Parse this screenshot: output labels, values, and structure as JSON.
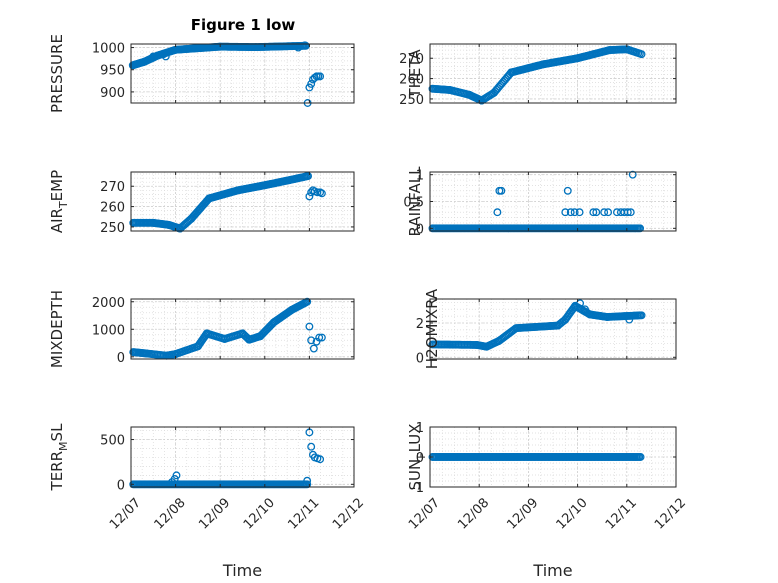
{
  "figure_title": "Figure 1 low",
  "colors": {
    "marker": "#0072BD",
    "axis": "#262626",
    "grid": "#d9d9d9"
  },
  "chart_data": [
    {
      "type": "scatter",
      "title": "Figure 1 low",
      "ylabel": "PRESSURE",
      "ylabel_parts": [
        "PRESSURE"
      ],
      "xlabel": "",
      "xticks": [
        "12/07",
        "12/08",
        "12/09",
        "12/10",
        "12/11",
        "12/12"
      ],
      "xlim": [
        0,
        5
      ],
      "ylim": [
        875,
        1008
      ],
      "yticks": [
        "900",
        "950",
        "1000"
      ],
      "ytick_values": [
        900,
        950,
        1000
      ],
      "segments": [
        {
          "from": [
            0.04,
            960
          ],
          "to": [
            0.3,
            968
          ],
          "n": 14
        },
        {
          "from": [
            0.3,
            968
          ],
          "to": [
            0.6,
            982
          ],
          "n": 14
        },
        {
          "from": [
            0.6,
            982
          ],
          "to": [
            1.0,
            995
          ],
          "n": 18
        },
        {
          "from": [
            1.0,
            995
          ],
          "to": [
            2.0,
            1002
          ],
          "n": 40
        },
        {
          "from": [
            2.0,
            1002
          ],
          "to": [
            2.8,
            1001
          ],
          "n": 32
        },
        {
          "from": [
            2.8,
            1001
          ],
          "to": [
            3.92,
            1004
          ],
          "n": 42
        }
      ],
      "points": [
        [
          0.45,
          975
        ],
        [
          0.5,
          980
        ],
        [
          0.73,
          985
        ],
        [
          0.78,
          980
        ],
        [
          3.75,
          1000
        ],
        [
          3.9,
          1005
        ],
        [
          3.96,
          875
        ],
        [
          4.0,
          910
        ],
        [
          4.04,
          918
        ],
        [
          4.08,
          928
        ],
        [
          4.12,
          932
        ],
        [
          4.16,
          935
        ],
        [
          4.2,
          935
        ],
        [
          4.24,
          935
        ]
      ]
    },
    {
      "type": "scatter",
      "ylabel": "THETA",
      "ylabel_parts": [
        "THETA"
      ],
      "xlabel": "",
      "xticks": [
        "12/07",
        "12/08",
        "12/09",
        "12/10",
        "12/11",
        "12/12"
      ],
      "xlim": [
        0,
        5
      ],
      "ylim": [
        248,
        277
      ],
      "yticks": [
        "250",
        "260",
        "270"
      ],
      "ytick_values": [
        250,
        260,
        270
      ],
      "segments": [
        {
          "from": [
            0.05,
            255
          ],
          "to": [
            0.4,
            254.4
          ],
          "n": 14
        },
        {
          "from": [
            0.4,
            254.4
          ],
          "to": [
            0.8,
            252
          ],
          "n": 14
        },
        {
          "from": [
            0.8,
            252
          ],
          "to": [
            1.05,
            249.2
          ],
          "n": 12
        },
        {
          "from": [
            1.05,
            249.2
          ],
          "to": [
            1.3,
            253
          ],
          "n": 10
        },
        {
          "from": [
            1.3,
            253
          ],
          "to": [
            1.65,
            263
          ],
          "n": 14
        },
        {
          "from": [
            1.65,
            263
          ],
          "to": [
            2.3,
            267
          ],
          "n": 24
        },
        {
          "from": [
            2.3,
            267
          ],
          "to": [
            3.0,
            270
          ],
          "n": 28
        },
        {
          "from": [
            3.0,
            270
          ],
          "to": [
            3.65,
            274
          ],
          "n": 26
        },
        {
          "from": [
            3.65,
            274
          ],
          "to": [
            4.0,
            274.4
          ],
          "n": 14
        },
        {
          "from": [
            4.0,
            274.4
          ],
          "to": [
            4.3,
            272
          ],
          "n": 10
        }
      ],
      "points": []
    },
    {
      "type": "scatter",
      "ylabel": "AIR_TEMP",
      "ylabel_parts": [
        "AIR",
        "T",
        "EMP"
      ],
      "xlabel": "",
      "xticks": [
        "12/07",
        "12/08",
        "12/09",
        "12/10",
        "12/11",
        "12/12"
      ],
      "xlim": [
        0,
        5
      ],
      "ylim": [
        248,
        277
      ],
      "yticks": [
        "250",
        "260",
        "270"
      ],
      "ytick_values": [
        250,
        260,
        270
      ],
      "segments": [
        {
          "from": [
            0.05,
            252
          ],
          "to": [
            0.5,
            252
          ],
          "n": 16
        },
        {
          "from": [
            0.5,
            252
          ],
          "to": [
            0.85,
            251
          ],
          "n": 14
        },
        {
          "from": [
            0.85,
            251
          ],
          "to": [
            1.1,
            249.2
          ],
          "n": 10
        },
        {
          "from": [
            1.1,
            249.2
          ],
          "to": [
            1.35,
            254
          ],
          "n": 10
        },
        {
          "from": [
            1.35,
            254
          ],
          "to": [
            1.75,
            264
          ],
          "n": 16
        },
        {
          "from": [
            1.75,
            264
          ],
          "to": [
            2.4,
            268
          ],
          "n": 26
        },
        {
          "from": [
            2.4,
            268
          ],
          "to": [
            3.0,
            270.5
          ],
          "n": 26
        },
        {
          "from": [
            3.0,
            270.5
          ],
          "to": [
            3.55,
            273
          ],
          "n": 22
        },
        {
          "from": [
            3.55,
            273
          ],
          "to": [
            3.97,
            275
          ],
          "n": 16
        }
      ],
      "points": [
        [
          4.0,
          265
        ],
        [
          4.04,
          267
        ],
        [
          4.08,
          268
        ],
        [
          4.12,
          267.5
        ],
        [
          4.18,
          267
        ],
        [
          4.24,
          267
        ],
        [
          4.28,
          266.5
        ]
      ]
    },
    {
      "type": "scatter",
      "ylabel": "RAINFALL",
      "ylabel_parts": [
        "RAINFALL"
      ],
      "xlabel": "",
      "xticks": [
        "12/07",
        "12/08",
        "12/09",
        "12/10",
        "12/11",
        "12/12"
      ],
      "xlim": [
        0,
        5
      ],
      "ylim": [
        -0.05,
        1.05
      ],
      "yticks": [
        "0",
        "0.5",
        "1"
      ],
      "ytick_values": [
        0,
        0.5,
        1
      ],
      "segments": [
        {
          "from": [
            0.05,
            0
          ],
          "to": [
            4.27,
            0
          ],
          "n": 150
        }
      ],
      "points": [
        [
          1.37,
          0.3
        ],
        [
          1.41,
          0.7
        ],
        [
          1.45,
          0.7
        ],
        [
          2.75,
          0.3
        ],
        [
          2.8,
          0.7
        ],
        [
          2.86,
          0.3
        ],
        [
          2.94,
          0.3
        ],
        [
          3.04,
          0.3
        ],
        [
          3.32,
          0.3
        ],
        [
          3.38,
          0.3
        ],
        [
          3.54,
          0.3
        ],
        [
          3.62,
          0.3
        ],
        [
          3.8,
          0.3
        ],
        [
          3.88,
          0.3
        ],
        [
          3.95,
          0.3
        ],
        [
          4.02,
          0.3
        ],
        [
          4.08,
          0.3
        ],
        [
          4.12,
          1.0
        ]
      ]
    },
    {
      "type": "scatter",
      "ylabel": "MIXDEPTH",
      "ylabel_parts": [
        "MIXDEPTH"
      ],
      "xlabel": "",
      "xticks": [
        "12/07",
        "12/08",
        "12/09",
        "12/10",
        "12/11",
        "12/12"
      ],
      "xlim": [
        0,
        5
      ],
      "ylim": [
        -80,
        2100
      ],
      "yticks": [
        "0",
        "1000",
        "2000"
      ],
      "ytick_values": [
        0,
        1000,
        2000
      ],
      "segments": [
        {
          "from": [
            0.05,
            170
          ],
          "to": [
            0.35,
            120
          ],
          "n": 12
        },
        {
          "from": [
            0.35,
            120
          ],
          "to": [
            0.8,
            40
          ],
          "n": 14
        },
        {
          "from": [
            0.8,
            40
          ],
          "to": [
            1.0,
            100
          ],
          "n": 8
        },
        {
          "from": [
            1.0,
            100
          ],
          "to": [
            1.5,
            380
          ],
          "n": 14
        },
        {
          "from": [
            1.5,
            380
          ],
          "to": [
            1.7,
            850
          ],
          "n": 10
        },
        {
          "from": [
            1.7,
            850
          ],
          "to": [
            2.1,
            650
          ],
          "n": 12
        },
        {
          "from": [
            2.1,
            650
          ],
          "to": [
            2.5,
            850
          ],
          "n": 12
        },
        {
          "from": [
            2.5,
            850
          ],
          "to": [
            2.65,
            620
          ],
          "n": 6
        },
        {
          "from": [
            2.65,
            620
          ],
          "to": [
            2.9,
            750
          ],
          "n": 10
        },
        {
          "from": [
            2.9,
            750
          ],
          "to": [
            3.2,
            1250
          ],
          "n": 12
        },
        {
          "from": [
            3.2,
            1250
          ],
          "to": [
            3.6,
            1700
          ],
          "n": 16
        },
        {
          "from": [
            3.6,
            1700
          ],
          "to": [
            3.95,
            2000
          ],
          "n": 14
        }
      ],
      "points": [
        [
          4.0,
          1100
        ],
        [
          4.04,
          600
        ],
        [
          4.1,
          300
        ],
        [
          4.16,
          550
        ],
        [
          4.22,
          700
        ],
        [
          4.28,
          700
        ]
      ]
    },
    {
      "type": "scatter",
      "ylabel": "H2OMIXRA",
      "ylabel_parts": [
        "H2OMIXRA"
      ],
      "xlabel": "",
      "xticks": [
        "12/07",
        "12/08",
        "12/09",
        "12/10",
        "12/11",
        "12/12"
      ],
      "xlim": [
        0,
        5
      ],
      "ylim": [
        -0.1,
        3.4
      ],
      "yticks": [
        "0",
        "2"
      ],
      "ytick_values": [
        0,
        2
      ],
      "segments": [
        {
          "from": [
            0.05,
            0.75
          ],
          "to": [
            0.95,
            0.72
          ],
          "n": 30
        },
        {
          "from": [
            0.95,
            0.72
          ],
          "to": [
            1.15,
            0.62
          ],
          "n": 8
        },
        {
          "from": [
            1.15,
            0.62
          ],
          "to": [
            1.4,
            0.95
          ],
          "n": 10
        },
        {
          "from": [
            1.4,
            0.95
          ],
          "to": [
            1.75,
            1.7
          ],
          "n": 14
        },
        {
          "from": [
            1.75,
            1.7
          ],
          "to": [
            2.6,
            1.85
          ],
          "n": 30
        },
        {
          "from": [
            2.6,
            1.85
          ],
          "to": [
            2.75,
            2.2
          ],
          "n": 6
        },
        {
          "from": [
            2.75,
            2.2
          ],
          "to": [
            2.95,
            3.0
          ],
          "n": 10
        },
        {
          "from": [
            2.95,
            3.0
          ],
          "to": [
            3.25,
            2.5
          ],
          "n": 12
        },
        {
          "from": [
            3.25,
            2.5
          ],
          "to": [
            3.6,
            2.35
          ],
          "n": 14
        },
        {
          "from": [
            3.6,
            2.35
          ],
          "to": [
            4.3,
            2.45
          ],
          "n": 26
        }
      ],
      "points": [
        [
          3.05,
          3.15
        ],
        [
          3.15,
          2.8
        ],
        [
          3.95,
          2.4
        ],
        [
          4.05,
          2.2
        ]
      ]
    },
    {
      "type": "scatter",
      "ylabel": "TERR_MSL",
      "ylabel_parts": [
        "TERR",
        "M",
        "SL"
      ],
      "xlabel": "Time",
      "xticks": [
        "12/07",
        "12/08",
        "12/09",
        "12/10",
        "12/11",
        "12/12"
      ],
      "xlim": [
        0,
        5
      ],
      "ylim": [
        -30,
        640
      ],
      "yticks": [
        "0",
        "500"
      ],
      "ytick_values": [
        0,
        500
      ],
      "segments": [
        {
          "from": [
            0.05,
            0
          ],
          "to": [
            3.95,
            0
          ],
          "n": 140
        }
      ],
      "points": [
        [
          0.92,
          25
        ],
        [
          0.98,
          60
        ],
        [
          1.02,
          100
        ],
        [
          3.95,
          40
        ],
        [
          4.0,
          580
        ],
        [
          4.04,
          420
        ],
        [
          4.08,
          330
        ],
        [
          4.12,
          300
        ],
        [
          4.18,
          290
        ],
        [
          4.24,
          280
        ]
      ]
    },
    {
      "type": "scatter",
      "ylabel": "SUN_FLUX",
      "ylabel_parts": [
        "SUN",
        "F",
        "LUX"
      ],
      "xlabel": "Time",
      "xticks": [
        "12/07",
        "12/08",
        "12/09",
        "12/10",
        "12/11",
        "12/12"
      ],
      "xlim": [
        0,
        5
      ],
      "ylim": [
        -1,
        1
      ],
      "yticks": [
        "-1",
        "0",
        "1"
      ],
      "ytick_values": [
        -1,
        0,
        1
      ],
      "segments": [
        {
          "from": [
            0.05,
            0
          ],
          "to": [
            4.28,
            0
          ],
          "n": 150
        }
      ],
      "points": []
    }
  ]
}
